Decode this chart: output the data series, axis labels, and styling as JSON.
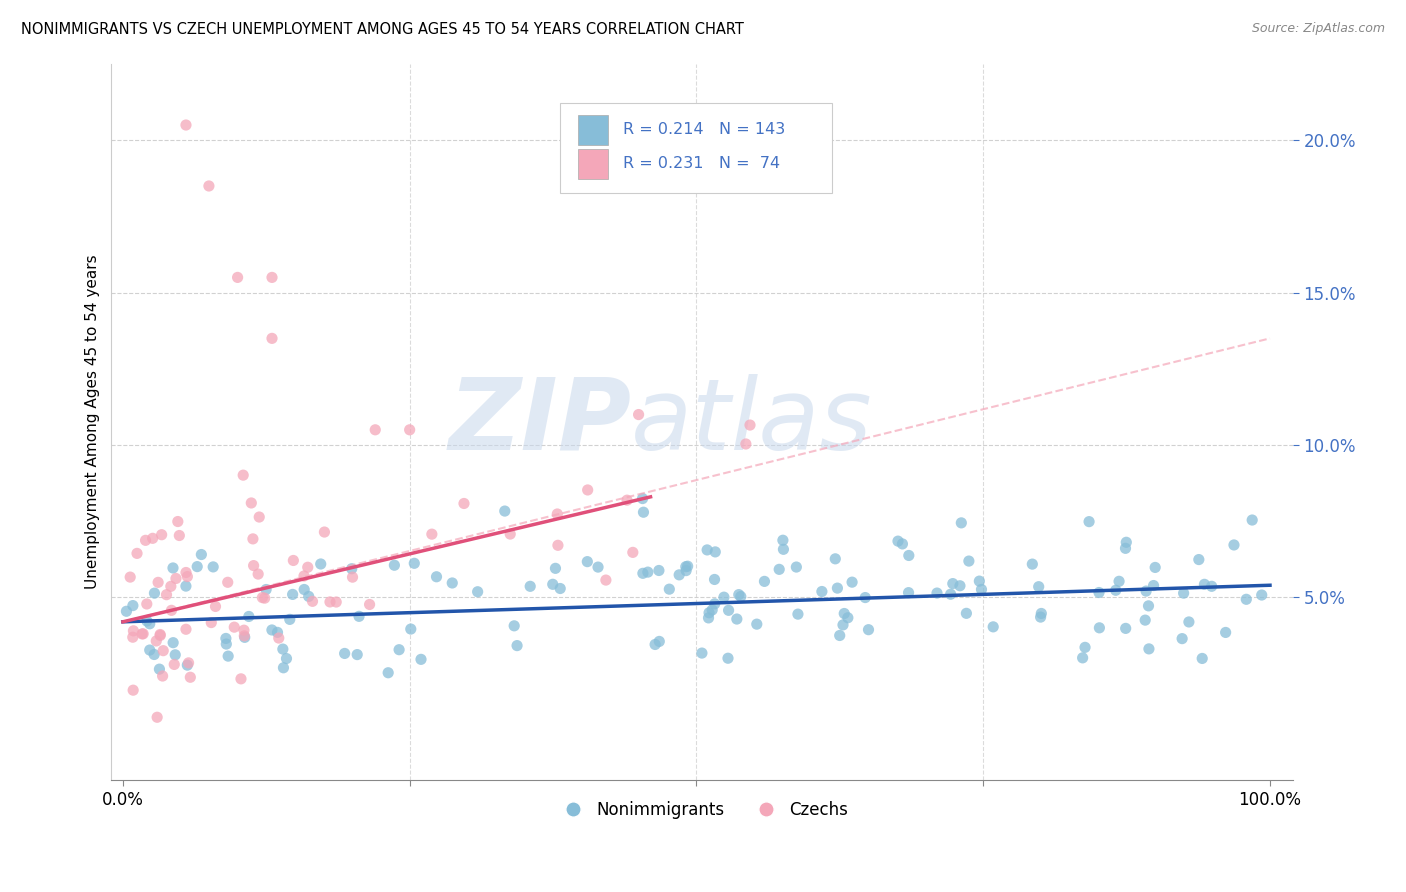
{
  "title": "NONIMMIGRANTS VS CZECH UNEMPLOYMENT AMONG AGES 45 TO 54 YEARS CORRELATION CHART",
  "source": "Source: ZipAtlas.com",
  "ylabel": "Unemployment Among Ages 45 to 54 years",
  "xlim": [
    -0.01,
    1.02
  ],
  "ylim": [
    -0.01,
    0.225
  ],
  "xticks": [
    0.0,
    0.25,
    0.5,
    0.75,
    1.0
  ],
  "xticklabels": [
    "0.0%",
    "",
    "",
    "",
    "100.0%"
  ],
  "yticks": [
    0.05,
    0.1,
    0.15,
    0.2
  ],
  "yticklabels": [
    "5.0%",
    "10.0%",
    "15.0%",
    "20.0%"
  ],
  "blue_color": "#87bdd8",
  "pink_color": "#f4a7b9",
  "blue_line_color": "#2255aa",
  "pink_line_color": "#e0507a",
  "dashed_line_color": "#f4a7b9",
  "axis_color": "#4472c4",
  "nonimmigrants_label": "Nonimmigrants",
  "czechs_label": "Czechs",
  "watermark_zip": "ZIP",
  "watermark_atlas": "atlas",
  "blue_seed": 42,
  "pink_seed": 99,
  "blue_line_x0": 0.0,
  "blue_line_y0": 0.042,
  "blue_line_x1": 1.0,
  "blue_line_y1": 0.054,
  "pink_line_x0": 0.0,
  "pink_line_y0": 0.042,
  "pink_line_x1": 0.46,
  "pink_line_y1": 0.083,
  "dash_line_x0": 0.0,
  "dash_line_y0": 0.042,
  "dash_line_x1": 1.0,
  "dash_line_y1": 0.135
}
